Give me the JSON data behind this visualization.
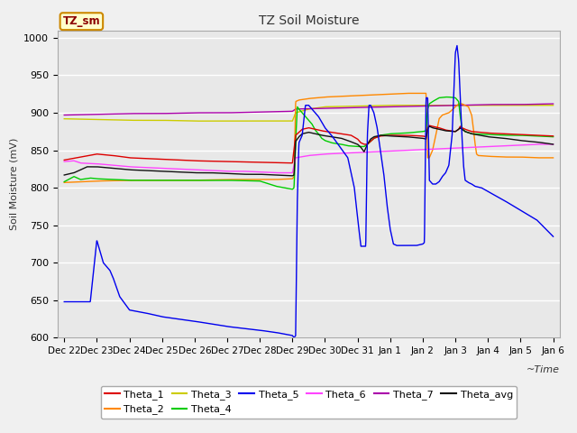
{
  "title": "TZ Soil Moisture",
  "ylabel": "Soil Moisture (mV)",
  "xlabel": "~Time",
  "ylim": [
    600,
    1010
  ],
  "yticks": [
    600,
    650,
    700,
    750,
    800,
    850,
    900,
    950,
    1000
  ],
  "plot_bg": "#e8e8e8",
  "fig_bg": "#f0f0f0",
  "legend_label": "TZ_sm",
  "series_colors": {
    "Theta_1": "#dd0000",
    "Theta_2": "#ff8800",
    "Theta_3": "#cccc00",
    "Theta_4": "#00cc00",
    "Theta_5": "#0000ee",
    "Theta_6": "#ff44ff",
    "Theta_7": "#aa00aa",
    "Theta_avg": "#111111"
  },
  "date_labels": [
    "Dec 22",
    "Dec 23",
    "Dec 24",
    "Dec 25",
    "Dec 26",
    "Dec 27",
    "Dec 28",
    "Dec 29",
    "Dec 30",
    "Dec 31",
    "Jan 1",
    "Jan 2",
    "Jan 3",
    "Jan 4",
    "Jan 5",
    "Jan 6"
  ]
}
